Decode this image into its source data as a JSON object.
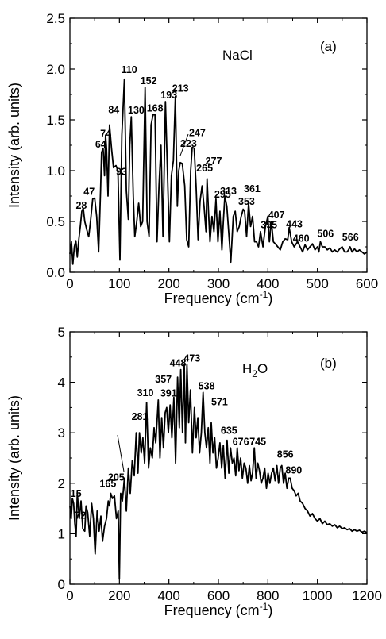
{
  "chart_data": [
    {
      "type": "line",
      "panel_label": "(a)",
      "annotation": "NaCl",
      "xlabel": "Frequency (cm",
      "xlabel_sup": "-1",
      "xlabel_end": ")",
      "ylabel": "Intensity (arb. units)",
      "xlim": [
        0,
        600
      ],
      "ylim": [
        0,
        2.5
      ],
      "xticks": [
        0,
        100,
        200,
        300,
        400,
        500,
        600
      ],
      "yticks": [
        "0.0",
        "0.5",
        "1.0",
        "1.5",
        "2.0",
        "2.5"
      ],
      "grid": false,
      "x": [
        0,
        3,
        6,
        9,
        12,
        15,
        18,
        21,
        24,
        27,
        30,
        34,
        38,
        42,
        46,
        50,
        54,
        58,
        62,
        64,
        67,
        70,
        72,
        74,
        77,
        80,
        84,
        88,
        93,
        97,
        101,
        105,
        110,
        114,
        118,
        121,
        124,
        128,
        131,
        135,
        139,
        143,
        147,
        152,
        156,
        160,
        164,
        168,
        172,
        176,
        180,
        184,
        188,
        193,
        197,
        201,
        205,
        209,
        213,
        217,
        220,
        223,
        227,
        232,
        236,
        240,
        244,
        247,
        251,
        255,
        259,
        263,
        267,
        271,
        275,
        277,
        280,
        283,
        287,
        291,
        295,
        299,
        303,
        307,
        310,
        313,
        317,
        321,
        325,
        330,
        334,
        338,
        342,
        346,
        350,
        353,
        357,
        361,
        365,
        369,
        373,
        377,
        381,
        385,
        390,
        395,
        400,
        403,
        407,
        411,
        415,
        420,
        425,
        430,
        435,
        440,
        443,
        448,
        453,
        457,
        460,
        465,
        470,
        475,
        480,
        485,
        490,
        495,
        500,
        503,
        506,
        510,
        515,
        520,
        525,
        530,
        535,
        540,
        545,
        550,
        555,
        560,
        563,
        566,
        570,
        575,
        580,
        585,
        590,
        595,
        600
      ],
      "y": [
        0.18,
        0.3,
        0.08,
        0.25,
        0.31,
        0.15,
        0.32,
        0.45,
        0.6,
        0.63,
        0.5,
        0.42,
        0.35,
        0.52,
        0.72,
        0.73,
        0.55,
        0.2,
        0.8,
        1.18,
        1.22,
        0.95,
        1.35,
        1.22,
        0.75,
        1.45,
        1.22,
        1.03,
        1.05,
        1.0,
        0.12,
        1.35,
        1.9,
        0.8,
        0.52,
        1.25,
        1.53,
        0.75,
        0.35,
        0.5,
        0.68,
        0.45,
        0.5,
        1.82,
        0.5,
        0.35,
        1.45,
        1.55,
        1.55,
        0.3,
        0.85,
        1.25,
        0.35,
        1.68,
        1.0,
        0.3,
        0.95,
        1.1,
        1.73,
        0.65,
        1.0,
        1.08,
        1.07,
        0.85,
        0.32,
        0.25,
        1.0,
        1.23,
        1.22,
        0.85,
        0.32,
        0.7,
        0.85,
        0.65,
        0.4,
        0.92,
        0.6,
        0.3,
        0.55,
        0.4,
        0.72,
        0.3,
        0.6,
        0.22,
        0.5,
        0.75,
        0.65,
        0.38,
        0.1,
        0.55,
        0.6,
        0.4,
        0.45,
        0.55,
        0.62,
        0.6,
        0.35,
        0.68,
        0.45,
        0.55,
        0.3,
        0.3,
        0.25,
        0.4,
        0.25,
        0.45,
        0.55,
        0.3,
        0.5,
        0.3,
        0.28,
        0.25,
        0.22,
        0.3,
        0.33,
        0.32,
        0.44,
        0.3,
        0.25,
        0.28,
        0.3,
        0.25,
        0.2,
        0.27,
        0.22,
        0.25,
        0.28,
        0.22,
        0.25,
        0.2,
        0.3,
        0.25,
        0.25,
        0.22,
        0.24,
        0.2,
        0.22,
        0.2,
        0.23,
        0.25,
        0.2,
        0.2,
        0.22,
        0.25,
        0.2,
        0.23,
        0.2,
        0.22,
        0.2,
        0.18,
        0.2
      ],
      "peak_labels": [
        {
          "text": "28",
          "x": 28,
          "y": 0.58
        },
        {
          "text": "47",
          "x": 47,
          "y": 0.73
        },
        {
          "text": "64",
          "x": 64,
          "y": 1.18
        },
        {
          "text": "74",
          "x": 74,
          "y": 1.3
        },
        {
          "text": "84",
          "x": 84,
          "y": 1.52
        },
        {
          "text": "93",
          "x": 93,
          "y": 1.05
        },
        {
          "text": "110",
          "x": 110,
          "y": 1.9
        },
        {
          "text": "130",
          "x": 130,
          "y": 1.53
        },
        {
          "text": "152",
          "x": 152,
          "y": 1.82
        },
        {
          "text": "168",
          "x": 168,
          "y": 1.55
        },
        {
          "text": "193",
          "x": 193,
          "y": 1.68
        },
        {
          "text": "213",
          "x": 213,
          "y": 1.73
        },
        {
          "text": "223",
          "x": 223,
          "y": 1.08
        },
        {
          "text": "247",
          "x": 247,
          "y": 1.23
        },
        {
          "text": "265",
          "x": 265,
          "y": 0.85
        },
        {
          "text": "277",
          "x": 277,
          "y": 0.92
        },
        {
          "text": "295",
          "x": 295,
          "y": 0.72
        },
        {
          "text": "313",
          "x": 313,
          "y": 0.75
        },
        {
          "text": "353",
          "x": 353,
          "y": 0.6
        },
        {
          "text": "361",
          "x": 361,
          "y": 0.68
        },
        {
          "text": "395",
          "x": 395,
          "y": 0.45
        },
        {
          "text": "407",
          "x": 407,
          "y": 0.5
        },
        {
          "text": "443",
          "x": 443,
          "y": 0.44
        },
        {
          "text": "460",
          "x": 460,
          "y": 0.3
        },
        {
          "text": "506",
          "x": 506,
          "y": 0.3
        },
        {
          "text": "566",
          "x": 566,
          "y": 0.25
        }
      ]
    },
    {
      "type": "line",
      "panel_label": "(b)",
      "annotation": "H",
      "annotation_sub": "2",
      "annotation_end": "O",
      "xlabel": "Frequency (cm",
      "xlabel_sup": "-1",
      "xlabel_end": ")",
      "ylabel": "Intensity (arb. units)",
      "xlim": [
        0,
        1200
      ],
      "ylim": [
        0,
        5
      ],
      "xticks": [
        0,
        200,
        400,
        600,
        800,
        1000,
        1200
      ],
      "yticks": [
        "0",
        "1",
        "2",
        "3",
        "4",
        "5"
      ],
      "grid": false,
      "x": [
        0,
        5,
        10,
        15,
        20,
        25,
        30,
        38,
        45,
        52,
        60,
        65,
        72,
        80,
        88,
        95,
        102,
        110,
        118,
        125,
        132,
        140,
        148,
        155,
        160,
        165,
        172,
        180,
        188,
        195,
        200,
        205,
        212,
        220,
        228,
        236,
        244,
        252,
        260,
        268,
        275,
        281,
        288,
        295,
        302,
        310,
        318,
        325,
        333,
        340,
        347,
        357,
        364,
        371,
        378,
        385,
        391,
        398,
        405,
        412,
        420,
        427,
        435,
        442,
        448,
        455,
        462,
        467,
        473,
        480,
        487,
        495,
        503,
        510,
        517,
        524,
        531,
        538,
        545,
        552,
        559,
        566,
        571,
        578,
        585,
        592,
        599,
        606,
        613,
        620,
        627,
        635,
        642,
        649,
        656,
        663,
        670,
        676,
        683,
        690,
        697,
        704,
        711,
        718,
        725,
        732,
        738,
        745,
        752,
        759,
        766,
        773,
        780,
        787,
        794,
        801,
        808,
        815,
        822,
        829,
        836,
        843,
        850,
        856,
        863,
        870,
        877,
        884,
        890,
        898,
        906,
        914,
        922,
        930,
        940,
        950,
        960,
        970,
        980,
        990,
        1000,
        1010,
        1020,
        1030,
        1040,
        1050,
        1060,
        1070,
        1080,
        1090,
        1100,
        1110,
        1120,
        1130,
        1140,
        1150,
        1160,
        1170,
        1180,
        1190,
        1200
      ],
      "y": [
        1.55,
        1.3,
        1.7,
        1.6,
        1.2,
        0.95,
        1.8,
        1.3,
        1.65,
        1.1,
        1.05,
        1.55,
        1.42,
        0.95,
        1.6,
        1.3,
        0.6,
        1.45,
        1.05,
        1.35,
        0.85,
        1.15,
        1.3,
        1.65,
        1.55,
        1.8,
        1.7,
        1.75,
        1.3,
        1.45,
        0.1,
        1.8,
        1.65,
        2.1,
        1.45,
        2.3,
        1.8,
        2.45,
        2.15,
        3.0,
        2.2,
        3.0,
        2.6,
        2.9,
        2.4,
        3.6,
        2.3,
        2.7,
        2.5,
        3.1,
        2.8,
        3.65,
        2.5,
        3.3,
        2.7,
        3.4,
        3.5,
        3.0,
        3.55,
        2.9,
        3.7,
        2.4,
        4.1,
        3.1,
        4.25,
        3.0,
        4.35,
        2.8,
        4.35,
        3.2,
        3.85,
        2.6,
        3.5,
        2.9,
        3.3,
        2.6,
        3.0,
        3.8,
        3.0,
        2.7,
        3.1,
        2.4,
        3.2,
        2.6,
        2.9,
        2.3,
        2.5,
        2.8,
        2.3,
        2.75,
        2.1,
        2.85,
        2.2,
        2.7,
        2.4,
        2.5,
        2.15,
        2.7,
        2.25,
        2.5,
        2.1,
        2.4,
        2.3,
        2.0,
        2.35,
        2.05,
        2.2,
        2.7,
        2.1,
        2.4,
        2.25,
        2.0,
        2.1,
        2.3,
        1.9,
        2.2,
        2.0,
        2.2,
        2.3,
        2.05,
        2.35,
        2.0,
        2.3,
        2.35,
        2.0,
        2.2,
        1.9,
        2.1,
        2.1,
        1.9,
        1.85,
        1.75,
        1.8,
        1.65,
        1.6,
        1.5,
        1.45,
        1.35,
        1.4,
        1.3,
        1.25,
        1.3,
        1.2,
        1.25,
        1.18,
        1.2,
        1.15,
        1.18,
        1.12,
        1.15,
        1.1,
        1.12,
        1.08,
        1.1,
        1.05,
        1.08,
        1.05,
        1.07,
        1.03,
        1.05,
        1.02
      ],
      "peak_labels": [
        {
          "text": "15",
          "x": 15,
          "y": 1.6
        },
        {
          "text": "72",
          "x": 72,
          "y": 1.42
        },
        {
          "text": "165",
          "x": 165,
          "y": 1.8
        },
        {
          "text": "205",
          "x": 205,
          "y": 1.8
        },
        {
          "text": "281",
          "x": 281,
          "y": 3.0
        },
        {
          "text": "310",
          "x": 310,
          "y": 3.6
        },
        {
          "text": "357",
          "x": 357,
          "y": 3.65
        },
        {
          "text": "391",
          "x": 391,
          "y": 3.5
        },
        {
          "text": "448",
          "x": 448,
          "y": 4.25
        },
        {
          "text": "473",
          "x": 473,
          "y": 4.35
        },
        {
          "text": "538",
          "x": 538,
          "y": 3.8
        },
        {
          "text": "571",
          "x": 571,
          "y": 3.2
        },
        {
          "text": "635",
          "x": 635,
          "y": 2.85
        },
        {
          "text": "676",
          "x": 676,
          "y": 2.7
        },
        {
          "text": "745",
          "x": 745,
          "y": 2.7
        },
        {
          "text": "856",
          "x": 856,
          "y": 2.35
        },
        {
          "text": "890",
          "x": 890,
          "y": 2.1
        }
      ]
    }
  ]
}
